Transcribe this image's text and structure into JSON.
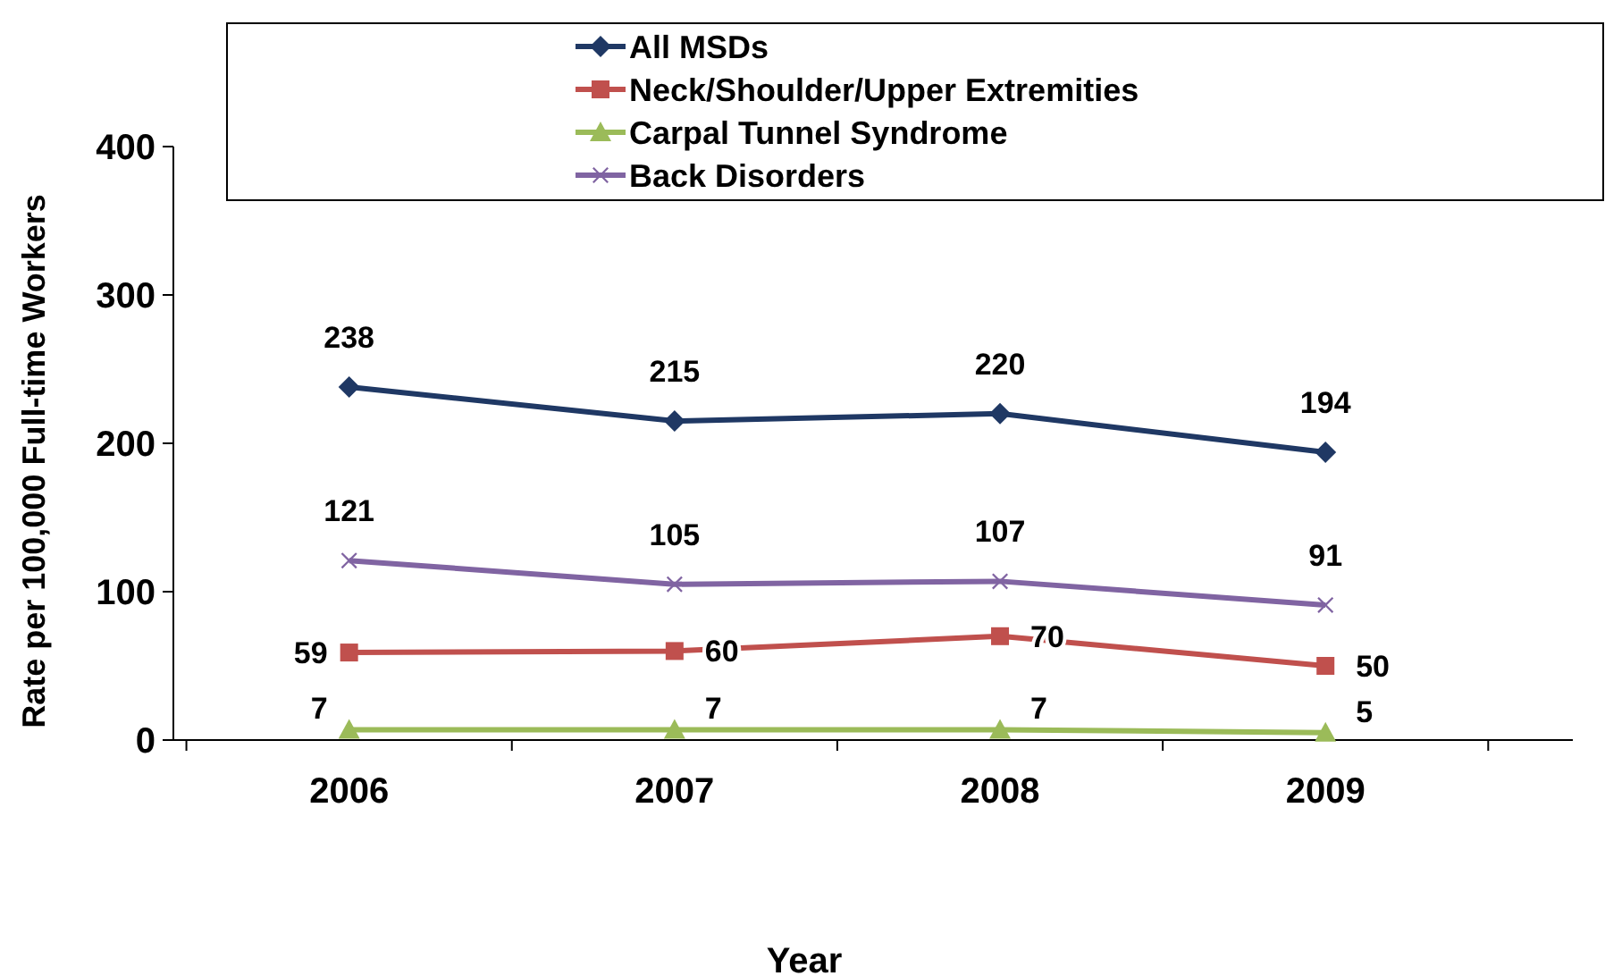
{
  "chart_data": {
    "type": "line",
    "xlabel": "Year",
    "ylabel": "Rate per 100,000 Full-time Workers",
    "categories": [
      "2006",
      "2007",
      "2008",
      "2009"
    ],
    "series": [
      {
        "name": "All MSDs",
        "color": "#1f3864",
        "marker": "diamond",
        "values": [
          238,
          215,
          220,
          194
        ]
      },
      {
        "name": "Neck/Shoulder/Upper Extremities",
        "color": "#c0504d",
        "marker": "square",
        "values": [
          59,
          60,
          70,
          50
        ]
      },
      {
        "name": "Carpal Tunnel Syndrome",
        "color": "#9bbb59",
        "marker": "triangle",
        "values": [
          7,
          7,
          7,
          5
        ]
      },
      {
        "name": "Back Disorders",
        "color": "#8064a2",
        "marker": "cross",
        "values": [
          121,
          105,
          107,
          91
        ]
      }
    ],
    "ylim": [
      0,
      400
    ],
    "yticks": [
      0,
      100,
      200,
      300,
      400
    ],
    "data_labels": true,
    "legend": "top",
    "grid": false
  }
}
